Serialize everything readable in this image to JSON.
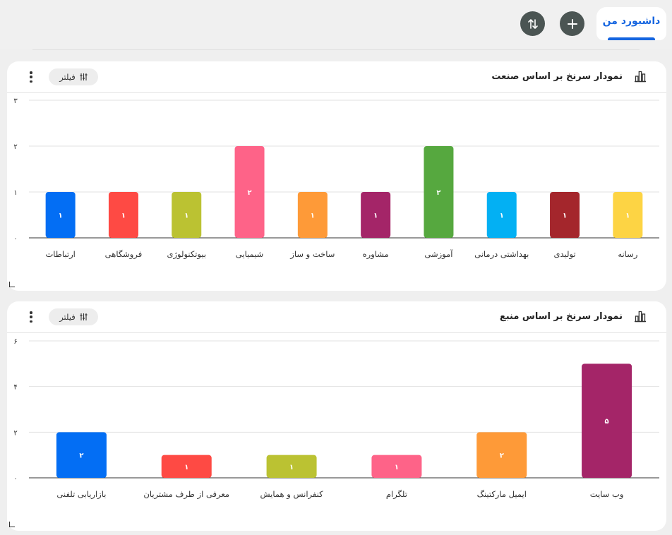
{
  "tabs": [
    {
      "label": "داشبورد من"
    }
  ],
  "card1": {
    "title": "نمودار سرنخ بر اساس صنعت",
    "filter_label": "فیلتر"
  },
  "card2": {
    "title": "نمودار سرنخ بر اساس منبع",
    "filter_label": "فیلتر"
  },
  "colors": {
    "bars1": [
      "#fdd444",
      "#a4262c",
      "#03b0f3",
      "#56a83f",
      "#a42568",
      "#fe9a38",
      "#fe6388",
      "#bbc232",
      "#fe4a44",
      "#036ef4"
    ],
    "bars2": [
      "#a42568",
      "#fe9a38",
      "#fe6388",
      "#bbc232",
      "#fe4a44",
      "#036ef4"
    ]
  },
  "chart_data": [
    {
      "type": "bar",
      "title": "نمودار سرنخ بر اساس صنعت",
      "categories": [
        "رسانه",
        "تولیدی",
        "بهداشتی درمانی",
        "آموزشی",
        "مشاوره",
        "ساخت و ساز",
        "شیمیایی",
        "بیوتکنولوژی",
        "فروشگاهی",
        "ارتباطات"
      ],
      "values": [
        1,
        1,
        1,
        2,
        1,
        1,
        2,
        1,
        1,
        1
      ],
      "value_labels": [
        "۱",
        "۱",
        "۱",
        "۲",
        "۱",
        "۱",
        "۲",
        "۱",
        "۱",
        "۱"
      ],
      "ylim": [
        0,
        3
      ],
      "yticks": [
        0,
        1,
        2,
        3
      ],
      "ytick_labels": [
        "۰",
        "۱",
        "۲",
        "۳"
      ],
      "grid": true
    },
    {
      "type": "bar",
      "title": "نمودار سرنخ بر اساس منبع",
      "categories": [
        "وب سایت",
        "ایمیل مارکتینگ",
        "تلگرام",
        "کنفرانس و همایش",
        "معرفی از طرف مشتریان",
        "بازاریابی تلفنی"
      ],
      "values": [
        5,
        2,
        1,
        1,
        1,
        2
      ],
      "value_labels": [
        "۵",
        "۲",
        "۱",
        "۱",
        "۱",
        "۲"
      ],
      "ylim": [
        0,
        6
      ],
      "yticks": [
        0,
        2,
        4,
        6
      ],
      "ytick_labels": [
        "۰",
        "۲",
        "۴",
        "۶"
      ],
      "grid": true
    }
  ]
}
